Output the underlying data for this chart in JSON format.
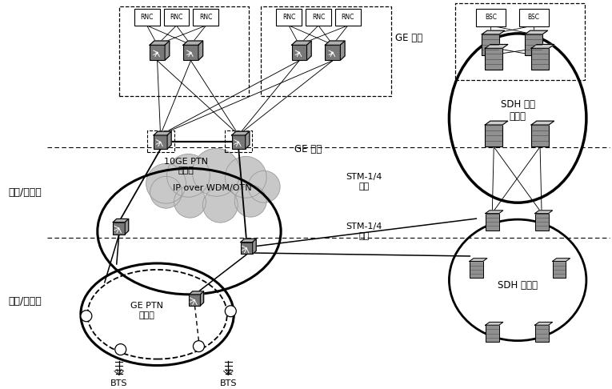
{
  "bg_color": "#ffffff",
  "layer_label_core": "核心/骨干层",
  "layer_label_agg": "汇聚/接入层",
  "cloud_label": "IP over WDM/OTN",
  "ge_label1": "GE 光口",
  "ge_label2": "GE 光口",
  "ptn_10ge_label": "10GE PTN\n汇聚层",
  "ptn_ge_label": "GE PTN\n接入层",
  "sdh_core_label": "SDH 核心\n骨干层",
  "sdh_agg_label": "SDH 汇聚层",
  "stm_label1": "STM-1/4\n互联",
  "stm_label2": "STM-1/4\n互联",
  "bts_label1": "BTS",
  "bts_label2": "BTS",
  "rnc_labels": [
    "RNC",
    "RNC",
    "RNC",
    "RNC",
    "RNC",
    "RNC"
  ],
  "bsc_labels": [
    "BSC",
    "BSC"
  ]
}
